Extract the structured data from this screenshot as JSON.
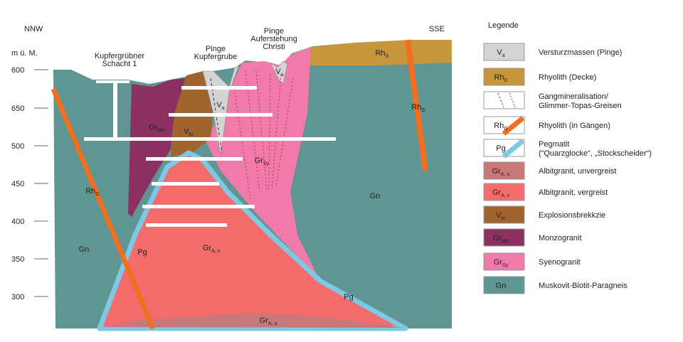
{
  "header": {
    "left": "NNW",
    "right": "SSE"
  },
  "elevation_scale": {
    "unit": "m ü. M.",
    "labels": [
      "600",
      "650",
      "500",
      "450",
      "400",
      "350",
      "300"
    ]
  },
  "sites": [
    {
      "lines": [
        "Kupfergrübner",
        "Schacht 1"
      ]
    },
    {
      "lines": [
        "Pinge",
        "Kupfergrube"
      ]
    },
    {
      "lines": [
        "Pinge",
        "Auferstehung",
        "Christi"
      ]
    }
  ],
  "section_labels": [
    {
      "main": "Rh",
      "sub": "G"
    },
    {
      "main": "Gn"
    },
    {
      "main": "Pg"
    },
    {
      "main": "Gr",
      "sub": "A, v"
    },
    {
      "main": "Gr",
      "sub": "A, u"
    },
    {
      "main": "Pg"
    },
    {
      "main": "Gn"
    },
    {
      "main": "Rh",
      "sub": "G"
    },
    {
      "main": "Rh",
      "sub": "D"
    },
    {
      "main": "V",
      "sub": "a"
    },
    {
      "main": "V",
      "sub": "a"
    },
    {
      "main": "Gr",
      "sub": "Mo"
    },
    {
      "main": "V",
      "sub": "br"
    },
    {
      "main": "Gr",
      "sub": "Sy"
    }
  ],
  "legend": {
    "title": "Legende",
    "items": [
      {
        "symbol": {
          "main": "V",
          "sub": "a"
        },
        "lines": [
          "Versturzmassen (Pinge)"
        ]
      },
      {
        "symbol": {
          "main": "Rh",
          "sub": "D"
        },
        "lines": [
          "Rhyolith (Decke)"
        ]
      },
      {
        "lines": [
          "Gangmineralisation/",
          "Glimmer-Topas-Greisen"
        ]
      },
      {
        "symbol": {
          "main": "Rh",
          "sub": "G"
        },
        "lines": [
          "Rhyolith (in Gängen)"
        ]
      },
      {
        "symbol": {
          "main": "Pg"
        },
        "lines": [
          "Pegmatit",
          "(“Quarzglocke“, „Stockscheider“)"
        ]
      },
      {
        "symbol": {
          "main": "Gr",
          "sub": "A, u"
        },
        "lines": [
          "Albitgranit, unvergreist"
        ]
      },
      {
        "symbol": {
          "main": "Gr",
          "sub": "A, v"
        },
        "lines": [
          "Albitgranit, vergreist"
        ]
      },
      {
        "symbol": {
          "main": "V",
          "sub": "br"
        },
        "lines": [
          "Explosionsbrekkzie"
        ]
      },
      {
        "symbol": {
          "main": "Gr",
          "sub": "Mo"
        },
        "lines": [
          "Monzogranit"
        ]
      },
      {
        "symbol": {
          "main": "Gr",
          "sub": "Sy"
        },
        "lines": [
          "Syenogranit"
        ]
      },
      {
        "symbol": {
          "main": "Gn"
        },
        "lines": [
          "Muskovit-Biotit-Paragneis"
        ]
      }
    ]
  }
}
